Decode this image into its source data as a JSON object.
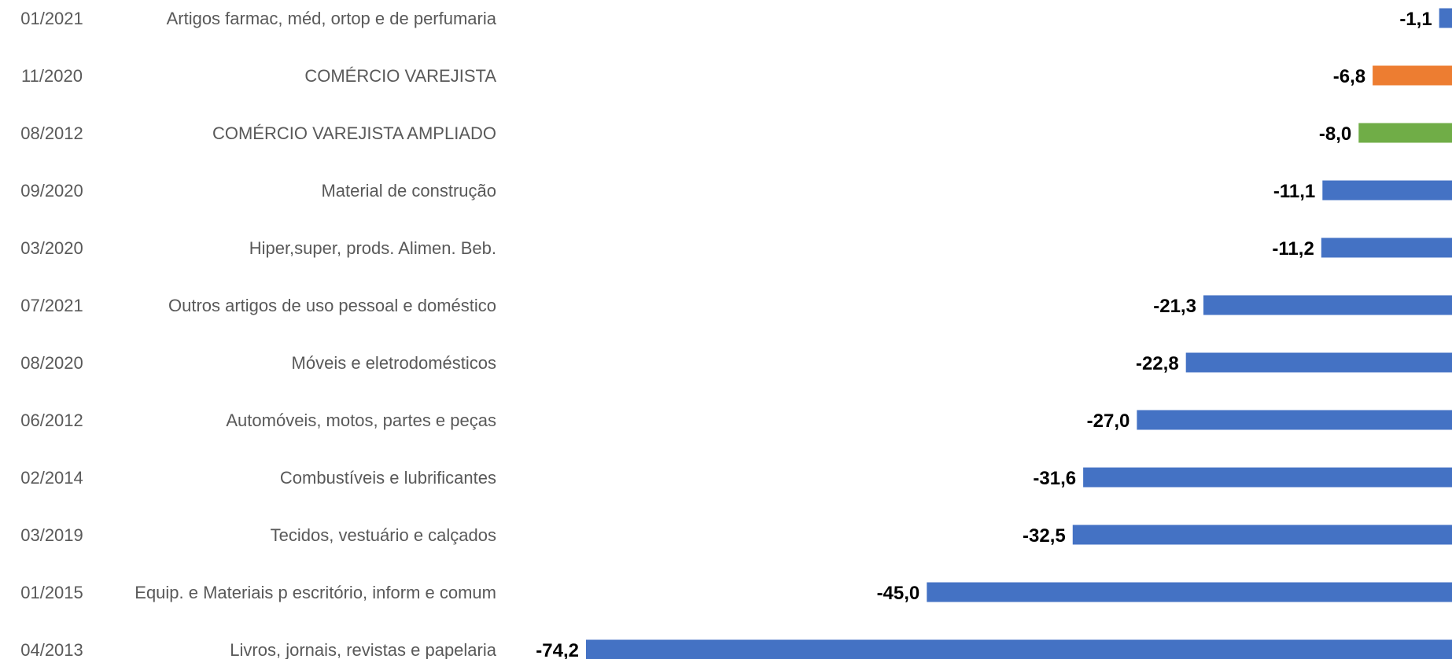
{
  "chart_data": {
    "type": "bar",
    "orientation": "horizontal",
    "title": "",
    "xlabel": "",
    "ylabel": "",
    "xlim": [
      -74.2,
      0
    ],
    "grid": false,
    "legend": "none",
    "rows": [
      {
        "date": "01/2021",
        "category": "Artigos farmac, méd, ortop e de perfumaria",
        "value": -1.1,
        "value_label": "-1,1",
        "color": "#4472C4"
      },
      {
        "date": "11/2020",
        "category": "COMÉRCIO VAREJISTA",
        "value": -6.8,
        "value_label": "-6,8",
        "color": "#ED7D31"
      },
      {
        "date": "08/2012",
        "category": "COMÉRCIO VAREJISTA AMPLIADO",
        "value": -8.0,
        "value_label": "-8,0",
        "color": "#70AD47"
      },
      {
        "date": "09/2020",
        "category": "Material de construção",
        "value": -11.1,
        "value_label": "-11,1",
        "color": "#4472C4"
      },
      {
        "date": "03/2020",
        "category": "Hiper,super, prods. Alimen. Beb.",
        "value": -11.2,
        "value_label": "-11,2",
        "color": "#4472C4"
      },
      {
        "date": "07/2021",
        "category": "Outros artigos de uso pessoal e doméstico",
        "value": -21.3,
        "value_label": "-21,3",
        "color": "#4472C4"
      },
      {
        "date": "08/2020",
        "category": "Móveis e eletrodomésticos",
        "value": -22.8,
        "value_label": "-22,8",
        "color": "#4472C4"
      },
      {
        "date": "06/2012",
        "category": "Automóveis, motos, partes e peças",
        "value": -27.0,
        "value_label": "-27,0",
        "color": "#4472C4"
      },
      {
        "date": "02/2014",
        "category": "Combustíveis e lubrificantes",
        "value": -31.6,
        "value_label": "-31,6",
        "color": "#4472C4"
      },
      {
        "date": "03/2019",
        "category": "Tecidos, vestuário e calçados",
        "value": -32.5,
        "value_label": "-32,5",
        "color": "#4472C4"
      },
      {
        "date": "01/2015",
        "category": "Equip. e Materiais p escritório, inform e comum",
        "value": -45.0,
        "value_label": "-45,0",
        "color": "#4472C4"
      },
      {
        "date": "04/2013",
        "category": "Livros, jornais, revistas e papelaria",
        "value": -74.2,
        "value_label": "-74,2",
        "color": "#4472C4"
      }
    ]
  }
}
